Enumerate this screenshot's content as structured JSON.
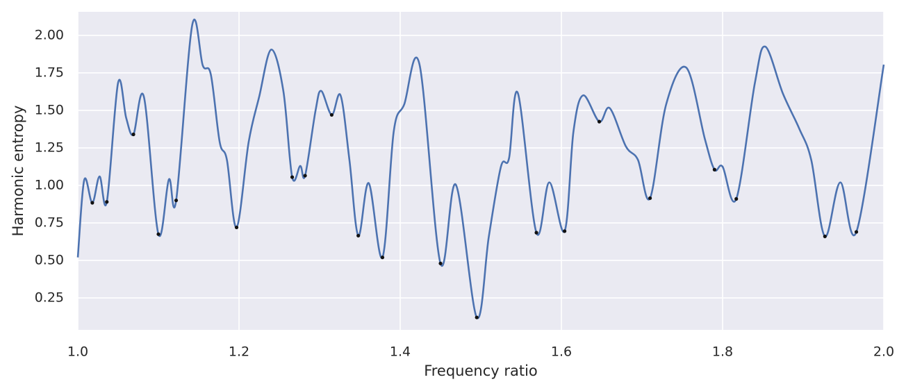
{
  "chart_data": {
    "type": "line",
    "xlabel": "Frequency ratio",
    "ylabel": "Harmonic entropy",
    "x": [
      1.0,
      1.008,
      1.018,
      1.027,
      1.036,
      1.05,
      1.06,
      1.069,
      1.082,
      1.1,
      1.113,
      1.122,
      1.142,
      1.155,
      1.165,
      1.176,
      1.185,
      1.197,
      1.212,
      1.225,
      1.24,
      1.255,
      1.266,
      1.276,
      1.282,
      1.295,
      1.302,
      1.315,
      1.326,
      1.337,
      1.348,
      1.361,
      1.378,
      1.392,
      1.405,
      1.424,
      1.45,
      1.469,
      1.495,
      1.51,
      1.525,
      1.535,
      1.546,
      1.569,
      1.585,
      1.604,
      1.615,
      1.627,
      1.647,
      1.66,
      1.68,
      1.695,
      1.71,
      1.73,
      1.755,
      1.778,
      1.79,
      1.8,
      1.817,
      1.84,
      1.853,
      1.875,
      1.895,
      1.91,
      1.927,
      1.946,
      1.966,
      2.0
    ],
    "values": [
      0.52,
      1.037,
      0.884,
      1.06,
      0.89,
      1.685,
      1.45,
      1.34,
      1.59,
      0.675,
      1.04,
      0.9,
      2.07,
      1.8,
      1.74,
      1.29,
      1.17,
      0.72,
      1.29,
      1.59,
      1.905,
      1.63,
      1.055,
      1.13,
      1.065,
      1.5,
      1.63,
      1.47,
      1.6,
      1.17,
      0.665,
      1.015,
      0.52,
      1.36,
      1.54,
      1.805,
      0.48,
      1.005,
      0.12,
      0.66,
      1.125,
      1.18,
      1.615,
      0.685,
      1.02,
      0.695,
      1.36,
      1.6,
      1.425,
      1.515,
      1.26,
      1.17,
      0.915,
      1.54,
      1.785,
      1.31,
      1.105,
      1.125,
      0.91,
      1.68,
      1.925,
      1.61,
      1.38,
      1.17,
      0.66,
      1.02,
      0.69,
      1.805
    ],
    "color": "#4c72b0",
    "minima_x": [
      1.018,
      1.036,
      1.069,
      1.1,
      1.122,
      1.197,
      1.266,
      1.282,
      1.315,
      1.348,
      1.378,
      1.45,
      1.495,
      1.569,
      1.604,
      1.647,
      1.71,
      1.79,
      1.817,
      1.927,
      1.966
    ],
    "minima_values": [
      0.884,
      0.89,
      1.34,
      0.675,
      0.9,
      0.72,
      1.055,
      1.065,
      1.47,
      0.665,
      0.52,
      0.48,
      0.12,
      0.685,
      0.695,
      1.425,
      0.915,
      1.105,
      0.91,
      0.66,
      0.69
    ],
    "minima_color": "#111111",
    "xlim": [
      1.0,
      2.0
    ],
    "xticks": [
      {
        "value": 1.0,
        "label": "1.0"
      },
      1.2,
      1.4,
      1.6,
      1.8,
      {
        "value": 2.0,
        "label": "2.0"
      }
    ],
    "ylim": [
      0.037,
      2.157
    ],
    "yticks": [
      0.25,
      {
        "value": 0.5,
        "label": "0.50"
      },
      0.75,
      {
        "value": 1.0,
        "label": "1.00"
      },
      1.25,
      {
        "value": 1.5,
        "label": "1.50"
      },
      1.75,
      {
        "value": 2.0,
        "label": "2.00"
      }
    ],
    "grid": true
  }
}
